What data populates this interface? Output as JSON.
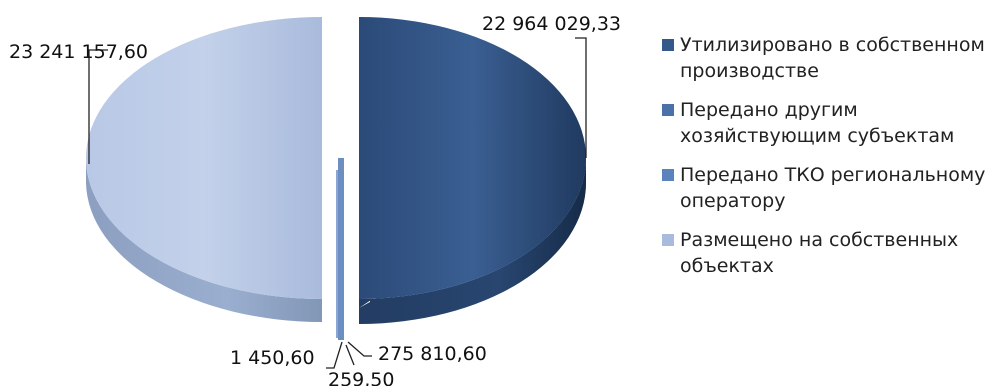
{
  "chart_data": {
    "type": "pie",
    "title": "",
    "series": [
      {
        "name": "Утилизировано в собственном производстве",
        "value": 22964029.33,
        "label": "22 964 029,33",
        "color": "#34588a"
      },
      {
        "name": "Передано другим хозяйствующим субъектам",
        "value": 1450.6,
        "label": "1 450,60",
        "color": "#4a72a8"
      },
      {
        "name": "Передано ТКО региональному оператору",
        "value": 259.5,
        "label": "259,50",
        "color": "#5a82bb"
      },
      {
        "name": "Размещено на собственных объектах",
        "value": 23241157.6,
        "label": "23 241 157,60",
        "color": "#a9bbdc"
      }
    ],
    "extra_labels": [
      "275 810,60"
    ],
    "legend_position": "right",
    "three_d": true
  }
}
